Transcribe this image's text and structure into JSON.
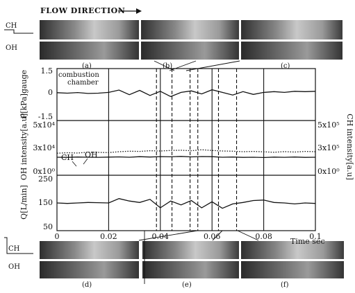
{
  "header": {
    "flow_direction": "FLOW DIRECTION"
  },
  "images": {
    "row_labels": [
      "CH",
      "OH"
    ],
    "panels": [
      "(a)",
      "(b)",
      "(c)",
      "(d)",
      "(e)",
      "(f)"
    ]
  },
  "chart_data": [
    {
      "type": "line",
      "panel": "pressure",
      "ylabel": "P[kPa]gauge",
      "annotation": "combustion chamber",
      "yticks": [
        "1.5",
        "0",
        "-1.5"
      ],
      "ylim": [
        -1.5,
        1.5
      ],
      "x": [
        0,
        0.004,
        0.008,
        0.012,
        0.016,
        0.02,
        0.024,
        0.028,
        0.032,
        0.036,
        0.04,
        0.044,
        0.048,
        0.052,
        0.056,
        0.06,
        0.064,
        0.068,
        0.072,
        0.076,
        0.08,
        0.084,
        0.088,
        0.092,
        0.096,
        0.1
      ],
      "series": [
        {
          "values": [
            0.03,
            0.0,
            0.04,
            -0.02,
            0.0,
            0.05,
            0.2,
            -0.1,
            0.18,
            -0.15,
            0.12,
            -0.22,
            0.05,
            0.15,
            -0.05,
            0.22,
            0.05,
            -0.12,
            0.1,
            -0.08,
            0.05,
            0.1,
            0.05,
            0.12,
            0.1,
            0.12
          ]
        }
      ]
    },
    {
      "type": "line",
      "panel": "intensity",
      "ylabel_left": "OH intensity[a.u]",
      "ylabel_right": "CH intensity[a.u]",
      "yticks_left": [
        "5x10⁴",
        "3x10⁴",
        "0x10⁰"
      ],
      "yticks_right": [
        "5x10⁵",
        "3x10⁵",
        "0x10⁰"
      ],
      "ylim_left": [
        0,
        50000
      ],
      "ylim_right": [
        0,
        500000
      ],
      "x": [
        0,
        0.004,
        0.008,
        0.012,
        0.016,
        0.02,
        0.024,
        0.028,
        0.032,
        0.036,
        0.04,
        0.044,
        0.048,
        0.052,
        0.056,
        0.06,
        0.064,
        0.068,
        0.072,
        0.076,
        0.08,
        0.084,
        0.088,
        0.092,
        0.096,
        0.1
      ],
      "series": [
        {
          "name": "OH",
          "axis": "left",
          "style": "dotted",
          "values": [
            20000,
            20500,
            20200,
            21000,
            20800,
            20600,
            21500,
            22000,
            21800,
            22500,
            22200,
            22800,
            23000,
            22500,
            23500,
            22800,
            22200,
            22000,
            21500,
            21800,
            21400,
            21000,
            21600,
            21200,
            21800,
            21500
          ]
        },
        {
          "name": "CH",
          "axis": "right",
          "style": "solid",
          "values": [
            160000,
            158000,
            162000,
            160000,
            159000,
            161000,
            163000,
            160000,
            165000,
            162000,
            166000,
            164000,
            168000,
            163000,
            167000,
            165000,
            160000,
            162000,
            158000,
            160000,
            157000,
            161000,
            159000,
            162000,
            158000,
            160000
          ]
        }
      ]
    },
    {
      "type": "line",
      "panel": "flow_rate",
      "ylabel": "Q[L/min]",
      "yticks": [
        "250",
        "150",
        "50"
      ],
      "ylim": [
        50,
        250
      ],
      "xlabel": "Time sec",
      "xticks": [
        "0",
        "0.02",
        "0.04",
        "0.06",
        "0.08",
        "0.1"
      ],
      "xlim": [
        0,
        0.1
      ],
      "x": [
        0,
        0.004,
        0.008,
        0.012,
        0.016,
        0.02,
        0.024,
        0.028,
        0.032,
        0.036,
        0.04,
        0.044,
        0.048,
        0.052,
        0.056,
        0.06,
        0.064,
        0.068,
        0.072,
        0.076,
        0.08,
        0.084,
        0.088,
        0.092,
        0.096,
        0.1
      ],
      "series": [
        {
          "values": [
            150,
            148,
            150,
            152,
            151,
            150,
            168,
            158,
            152,
            165,
            130,
            158,
            142,
            160,
            130,
            155,
            128,
            146,
            152,
            160,
            162,
            152,
            150,
            146,
            150,
            148
          ]
        }
      ]
    }
  ]
}
